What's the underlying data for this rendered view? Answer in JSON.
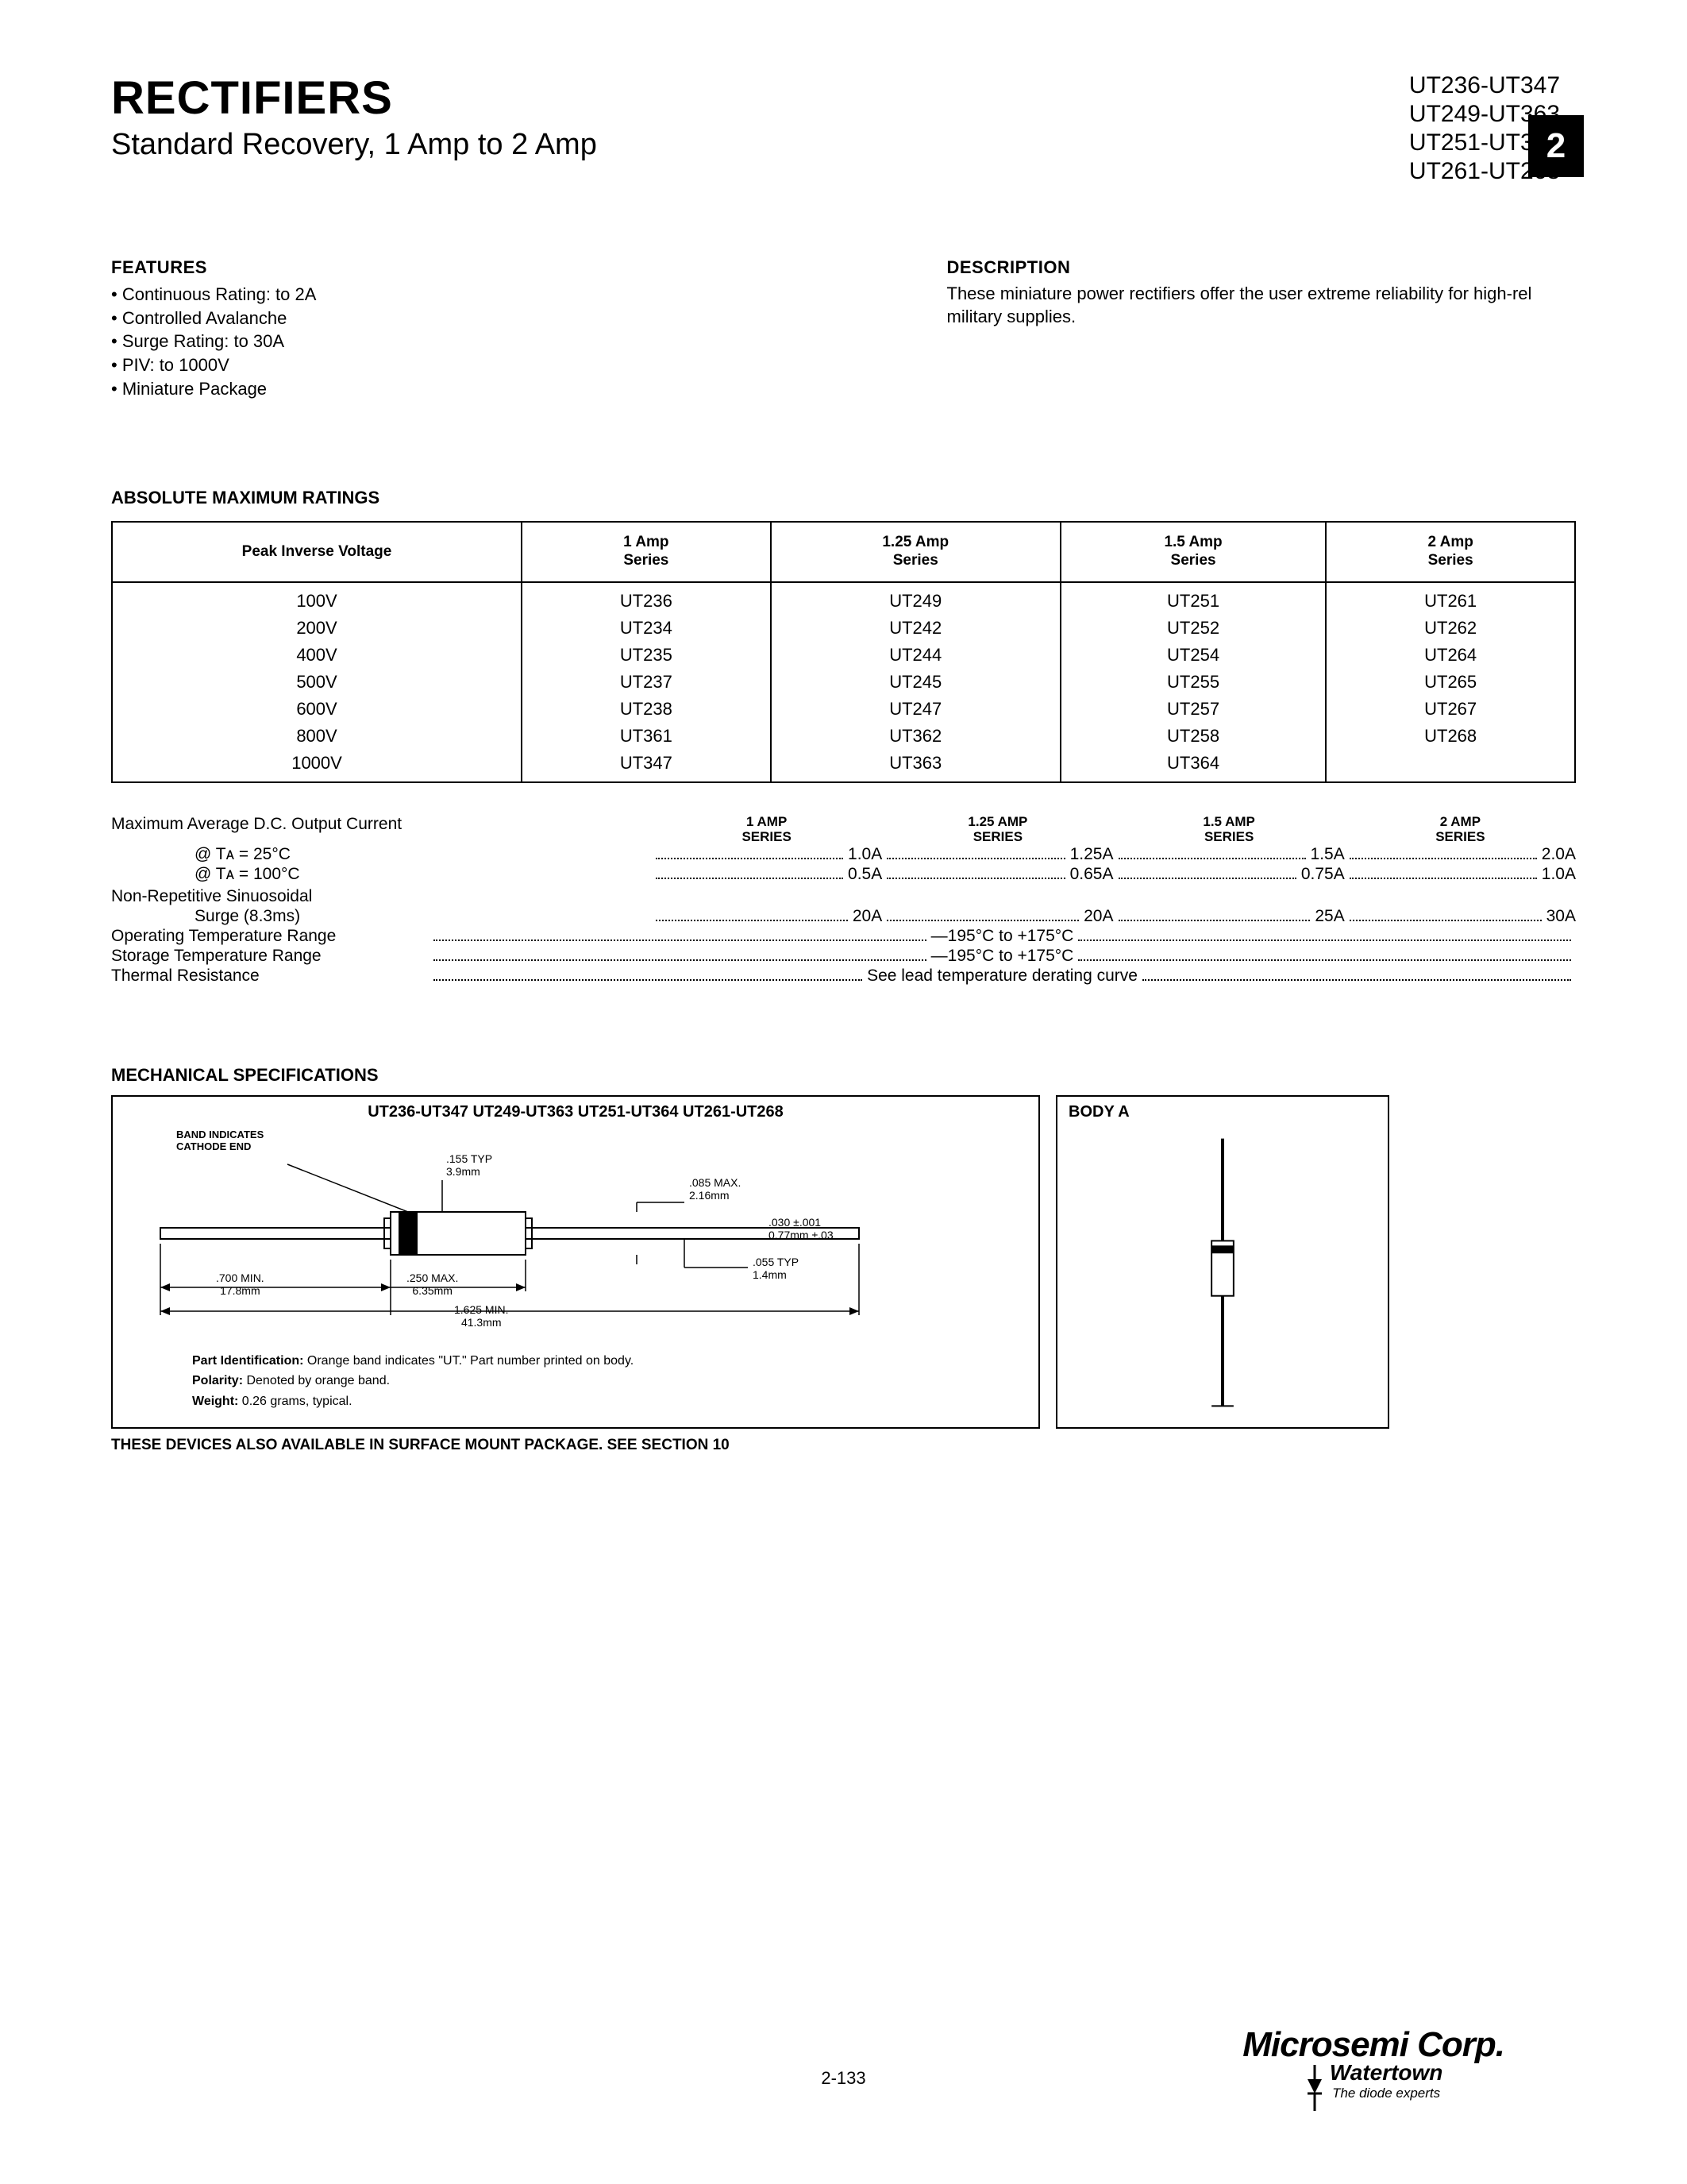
{
  "header": {
    "title": "RECTIFIERS",
    "subtitle": "Standard Recovery, 1 Amp to 2 Amp",
    "part_lines": [
      "UT236-UT347",
      "UT249-UT363",
      "UT251-UT364",
      "UT261-UT268"
    ],
    "badge": "2"
  },
  "features": {
    "heading": "FEATURES",
    "items": [
      "Continuous Rating: to 2A",
      "Controlled Avalanche",
      "Surge Rating: to 30A",
      "PIV: to 1000V",
      "Miniature Package"
    ]
  },
  "description": {
    "heading": "DESCRIPTION",
    "text": "These miniature power rectifiers offer the user extreme reliability for high-rel military supplies."
  },
  "ratings": {
    "heading": "ABSOLUTE MAXIMUM RATINGS",
    "columns": [
      "Peak Inverse Voltage",
      "1 Amp\nSeries",
      "1.25 Amp\nSeries",
      "1.5 Amp\nSeries",
      "2 Amp\nSeries"
    ],
    "rows": [
      [
        "100V",
        "UT236",
        "UT249",
        "UT251",
        "UT261"
      ],
      [
        "200V",
        "UT234",
        "UT242",
        "UT252",
        "UT262"
      ],
      [
        "400V",
        "UT235",
        "UT244",
        "UT254",
        "UT264"
      ],
      [
        "500V",
        "UT237",
        "UT245",
        "UT255",
        "UT265"
      ],
      [
        "600V",
        "UT238",
        "UT247",
        "UT257",
        "UT267"
      ],
      [
        "800V",
        "UT361",
        "UT362",
        "UT258",
        "UT268"
      ],
      [
        "1000V",
        "UT347",
        "UT363",
        "UT364",
        ""
      ]
    ]
  },
  "specs": {
    "series_headers": [
      "1 AMP\nSERIES",
      "1.25 AMP\nSERIES",
      "1.5 AMP\nSERIES",
      "2 AMP\nSERIES"
    ],
    "max_current_label": "Maximum Average D.C. Output Current",
    "r1": {
      "label": "                  @ Tᴀ = 25°C",
      "vals": [
        "1.0A",
        "1.25A",
        "1.5A",
        "2.0A"
      ]
    },
    "r2": {
      "label": "                  @ Tᴀ = 100°C",
      "vals": [
        "0.5A",
        "0.65A",
        "0.75A",
        "1.0A"
      ]
    },
    "nonrep_label": "Non-Repetitive Sinuosoidal",
    "r3": {
      "label": "                  Surge (8.3ms)",
      "vals": [
        "20A",
        "20A",
        "25A",
        "30A"
      ]
    },
    "r4": {
      "label": "Operating Temperature Range",
      "full": "—195°C to +175°C"
    },
    "r5": {
      "label": "Storage Temperature Range",
      "full": "—195°C to +175°C"
    },
    "r6": {
      "label": "Thermal Resistance",
      "full": "See lead temperature derating curve"
    }
  },
  "mech": {
    "heading": "MECHANICAL SPECIFICATIONS",
    "titles": "UT236-UT347   UT249-UT363   UT251-UT364   UT261-UT268",
    "body_label": "BODY A",
    "band_label": "BAND INDICATES\nCATHODE END",
    "d155": ".155 TYP\n3.9mm",
    "d085": ".085 MAX.\n2.16mm",
    "d030": ".030 ±.001\n0.77mm ±.03",
    "d055": ".055 TYP\n1.4mm",
    "d700": ".700 MIN.\n17.8mm",
    "d250": ".250 MAX.\n6.35mm",
    "d1625": "1.625 MIN.\n41.3mm",
    "note1a": "Part Identification:",
    "note1b": " Orange band indicates \"UT.\" Part number printed on body.",
    "note2a": "Polarity:",
    "note2b": " Denoted by orange band.",
    "note3a": "Weight:",
    "note3b": " 0.26 grams, typical.",
    "surface_note": "THESE DEVICES ALSO AVAILABLE IN SURFACE MOUNT PACKAGE. SEE SECTION 10"
  },
  "footer": {
    "page": "2-133",
    "logo_main": "Microsemi Corp.",
    "logo_sub": "Watertown",
    "logo_tag": "The diode experts"
  }
}
